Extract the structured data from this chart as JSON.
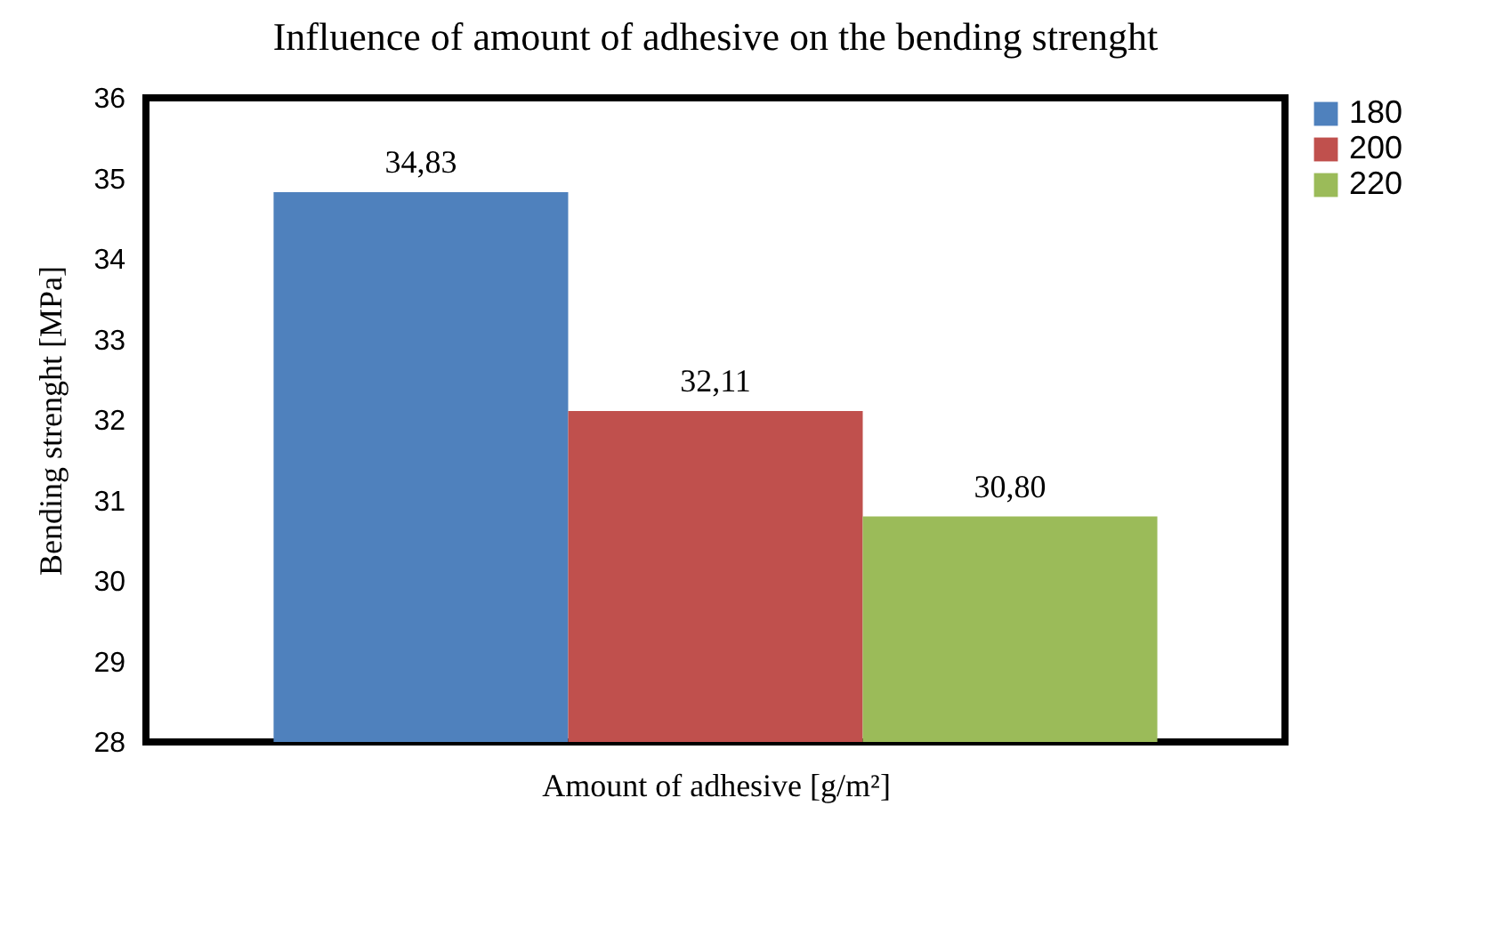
{
  "chart_data": {
    "type": "bar",
    "title": "Influence of amount of adhesive on the bending strenght",
    "xlabel": "Amount of adhesive [g/m²]",
    "ylabel": "Bending strenght [MPa]",
    "categories": [
      null
    ],
    "series": [
      {
        "name": "180",
        "color": "#4f81bd",
        "values": [
          34.83
        ],
        "value_labels": [
          "34,83"
        ]
      },
      {
        "name": "200",
        "color": "#c0504d",
        "values": [
          32.11
        ],
        "value_labels": [
          "32,11"
        ]
      },
      {
        "name": "220",
        "color": "#9bbb59",
        "values": [
          30.8
        ],
        "value_labels": [
          "30,80"
        ]
      }
    ],
    "ylim": [
      28,
      36
    ],
    "yticks": [
      28,
      29,
      30,
      31,
      32,
      33,
      34,
      35,
      36
    ],
    "grid": false,
    "legend": "right"
  }
}
